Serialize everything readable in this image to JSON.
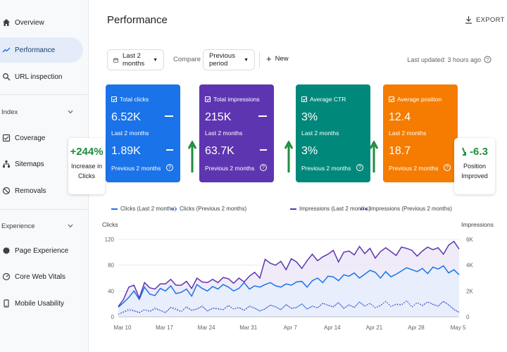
{
  "sidebar": {
    "items": [
      {
        "label": "Overview",
        "icon": "home-icon",
        "top": 14,
        "active": false
      },
      {
        "label": "Performance",
        "icon": "trending-up-icon",
        "top": 53,
        "active": true
      },
      {
        "label": "URL inspection",
        "icon": "search-icon",
        "top": 91,
        "active": false
      }
    ],
    "sections": [
      {
        "label": "Index",
        "items": [
          "Coverage",
          "Sitemaps",
          "Removals"
        ]
      },
      {
        "label": "Experience",
        "items": [
          "Page Experience",
          "Core Web Vitals",
          "Mobile Usability"
        ]
      }
    ]
  },
  "header": {
    "title": "Performance",
    "export_label": "EXPORT"
  },
  "filters": {
    "date_range": "Last 2 months",
    "compare_label": "Compare",
    "compare_value": "Previous period",
    "new_label": "New",
    "last_updated": "Last updated: 3 hours ago"
  },
  "cards": [
    {
      "title": "Total clicks",
      "value_current": "6.52K",
      "label_current": "Last 2 months",
      "value_previous": "1.89K",
      "label_previous": "Previous 2 months",
      "color": "#1a73e8"
    },
    {
      "title": "Total impressions",
      "value_current": "215K",
      "label_current": "Last 2 months",
      "value_previous": "63.7K",
      "label_previous": "Previous 2 months",
      "color": "#5e35b1"
    },
    {
      "title": "Average CTR",
      "value_current": "3%",
      "label_current": "Last 2 months",
      "value_previous": "3%",
      "label_previous": "Previous 2 months",
      "color": "#00897b"
    },
    {
      "title": "Average position",
      "value_current": "12.4",
      "label_current": "Last 2 months",
      "value_previous": "18.7",
      "label_previous": "Previous 2 months",
      "color": "#f57c00"
    }
  ],
  "callouts": {
    "clicks": {
      "value": "+244%",
      "line1": "Increase in",
      "line2": "Clicks"
    },
    "position": {
      "value": "-6.3",
      "line1": "Position",
      "line2": "Improved"
    }
  },
  "colors": {
    "clicks": "#1a73e8",
    "impressions": "#5e35b1",
    "impressions_fill": "#ece6f8",
    "clicks_fill": "#e6effc",
    "green_arrow": "#1e8e3e"
  },
  "legend": {
    "clicks_current": "Clicks (Last 2 months)",
    "clicks_previous": "Clicks (Previous 2 months)",
    "impressions_current": "Impressions (Last 2 months)",
    "impressions_previous": "Impressions (Previous 2 months)"
  },
  "chart_data": {
    "type": "line",
    "ylabel_left": "Clicks",
    "ylabel_right": "Impressions",
    "y_left_ticks": [
      "0",
      "40",
      "80",
      "120"
    ],
    "y_right_ticks": [
      "0",
      "2K",
      "4K",
      "6K"
    ],
    "x_ticks": [
      "Mar 10",
      "Mar 17",
      "Mar 24",
      "Mar 31",
      "Apr 7",
      "Apr 14",
      "Apr 21",
      "Apr 28",
      "May 5"
    ],
    "ylim_left": [
      0,
      120
    ],
    "ylim_right": [
      0,
      6000
    ],
    "series": [
      {
        "name": "Clicks (Last 2 months)",
        "axis": "left",
        "style": "solid",
        "values": [
          15,
          22,
          30,
          40,
          27,
          46,
          35,
          33,
          44,
          40,
          48,
          36,
          38,
          43,
          32,
          50,
          44,
          40,
          47,
          43,
          50,
          46,
          40,
          44,
          53,
          43,
          48,
          46,
          50,
          53,
          48,
          46,
          51,
          49,
          54,
          55,
          46,
          56,
          60,
          53,
          63,
          62,
          56,
          65,
          63,
          68,
          60,
          66,
          72,
          69,
          60,
          70,
          62,
          66,
          71,
          76,
          73,
          70,
          75,
          67,
          77,
          74,
          79,
          68,
          73,
          65
        ]
      },
      {
        "name": "Clicks (Previous 2 months)",
        "axis": "left",
        "style": "dotted",
        "values": [
          4,
          8,
          12,
          10,
          7,
          11,
          9,
          14,
          10,
          6,
          15,
          13,
          8,
          16,
          10,
          12,
          17,
          9,
          14,
          13,
          11,
          18,
          12,
          15,
          10,
          17,
          14,
          9,
          13,
          18,
          16,
          11,
          19,
          13,
          15,
          20,
          12,
          17,
          14,
          21,
          18,
          16,
          22,
          13,
          19,
          15,
          23,
          17,
          21,
          14,
          18,
          24,
          16,
          20,
          19,
          25,
          15,
          22,
          18,
          23,
          20,
          17,
          24,
          19,
          12,
          7
        ]
      },
      {
        "name": "Impressions (Last 2 months)",
        "axis": "right",
        "style": "solid",
        "values": [
          800,
          1350,
          2300,
          2450,
          1450,
          2650,
          2250,
          2150,
          2550,
          2550,
          2900,
          2450,
          2450,
          2750,
          2200,
          3000,
          2700,
          2650,
          2900,
          2650,
          3050,
          2950,
          2600,
          3000,
          2700,
          3150,
          3450,
          3000,
          4450,
          4150,
          4000,
          4300,
          3650,
          4500,
          4250,
          3750,
          4350,
          4850,
          4350,
          4650,
          4850,
          5150,
          4250,
          5000,
          5100,
          4800,
          5450,
          4900,
          5300,
          4550,
          5050,
          5350,
          5050,
          4750,
          5400,
          5300,
          5150,
          4700,
          5100,
          5400,
          5200,
          5350,
          4850,
          5550,
          5850,
          5250
        ]
      },
      {
        "name": "Impressions (Previous 2 months)",
        "axis": "right",
        "style": "dotted",
        "values": [
          200,
          350,
          500,
          450,
          300,
          550,
          400,
          600,
          500,
          350,
          700,
          550,
          400,
          750,
          500,
          600,
          800,
          450,
          650,
          600,
          550,
          850,
          600,
          700,
          500,
          800,
          650,
          450,
          600,
          900,
          750,
          550,
          950,
          650,
          700,
          1000,
          600,
          800,
          700,
          1050,
          900,
          750,
          1100,
          650,
          900,
          700,
          1150,
          800,
          1050,
          700,
          850,
          1200,
          800,
          950,
          900,
          1250,
          750,
          1100,
          850,
          1150,
          950,
          800,
          1200,
          900,
          550,
          350
        ]
      }
    ]
  }
}
